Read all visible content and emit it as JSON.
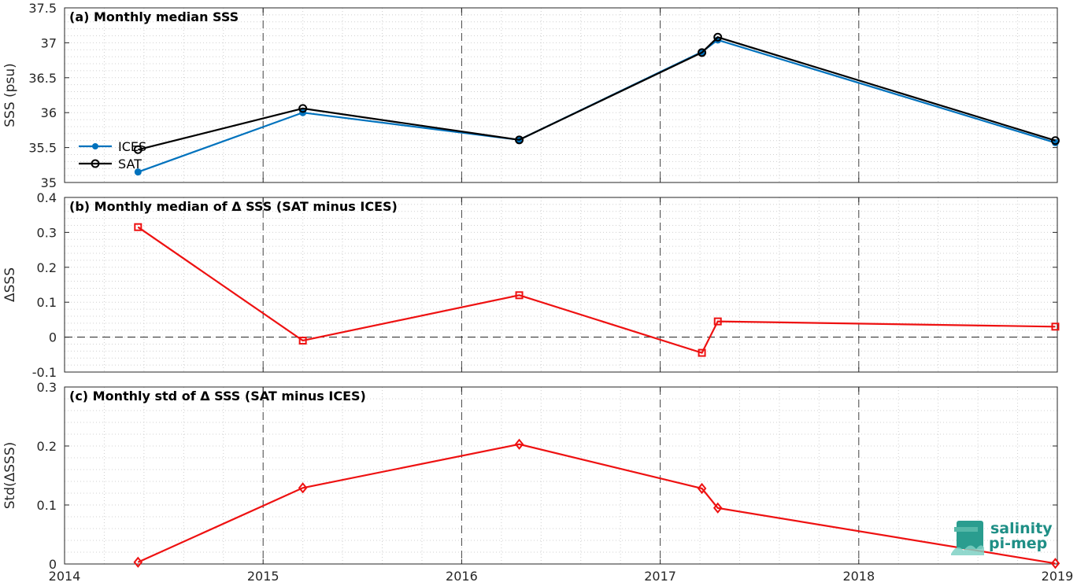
{
  "chart_data": [
    {
      "type": "line",
      "title": "(a) Monthly median SSS",
      "ylabel": "SSS (psu)",
      "xlim": [
        2014,
        2019
      ],
      "ylim": [
        35,
        37.5
      ],
      "yticks": [
        "35",
        "35.5",
        "36",
        "36.5",
        "37",
        "37.5"
      ],
      "xticks": [
        "2014",
        "2015",
        "2016",
        "2017",
        "2018",
        "2019"
      ],
      "grid": "minor dotted, major dashed vertical at years",
      "legend": "center-left",
      "x": [
        2014.37,
        2015.2,
        2016.29,
        2017.21,
        2017.29,
        2018.99
      ],
      "series": [
        {
          "name": "ICES",
          "color": "#0072bd",
          "marker": "dot",
          "values": [
            35.15,
            36.0,
            35.61,
            36.87,
            37.04,
            35.57
          ]
        },
        {
          "name": "SAT",
          "color": "#000000",
          "marker": "circle",
          "values": [
            35.47,
            36.06,
            35.61,
            36.86,
            37.08,
            35.6
          ]
        }
      ]
    },
    {
      "type": "line",
      "title": "(b) Monthly median of Δ SSS (SAT minus ICES)",
      "ylabel": "ΔSSS",
      "xlim": [
        2014,
        2019
      ],
      "ylim": [
        -0.1,
        0.4
      ],
      "yticks": [
        "-0.1",
        "0",
        "0.1",
        "0.2",
        "0.3",
        "0.4"
      ],
      "xticks": [
        "2014",
        "2015",
        "2016",
        "2017",
        "2018",
        "2019"
      ],
      "reference_line": 0,
      "x": [
        2014.37,
        2015.2,
        2016.29,
        2017.21,
        2017.29,
        2018.99
      ],
      "series": [
        {
          "color": "#ee1111",
          "marker": "square",
          "values": [
            0.315,
            -0.01,
            0.12,
            -0.045,
            0.045,
            0.03
          ]
        }
      ]
    },
    {
      "type": "line",
      "title": "(c) Monthly std of Δ SSS (SAT minus ICES)",
      "ylabel": "Std(ΔSSS)",
      "xlim": [
        2014,
        2019
      ],
      "ylim": [
        0,
        0.3
      ],
      "yticks": [
        "0",
        "0.1",
        "0.2",
        "0.3"
      ],
      "xticks": [
        "2014",
        "2015",
        "2016",
        "2017",
        "2018",
        "2019"
      ],
      "x": [
        2014.37,
        2015.2,
        2016.29,
        2017.21,
        2017.29,
        2018.99
      ],
      "series": [
        {
          "color": "#ee1111",
          "marker": "diamond",
          "values": [
            0.003,
            0.129,
            0.203,
            0.128,
            0.095,
            0.001
          ]
        }
      ]
    }
  ],
  "logo": {
    "line1": "salinity",
    "line2": "pi-mep"
  }
}
